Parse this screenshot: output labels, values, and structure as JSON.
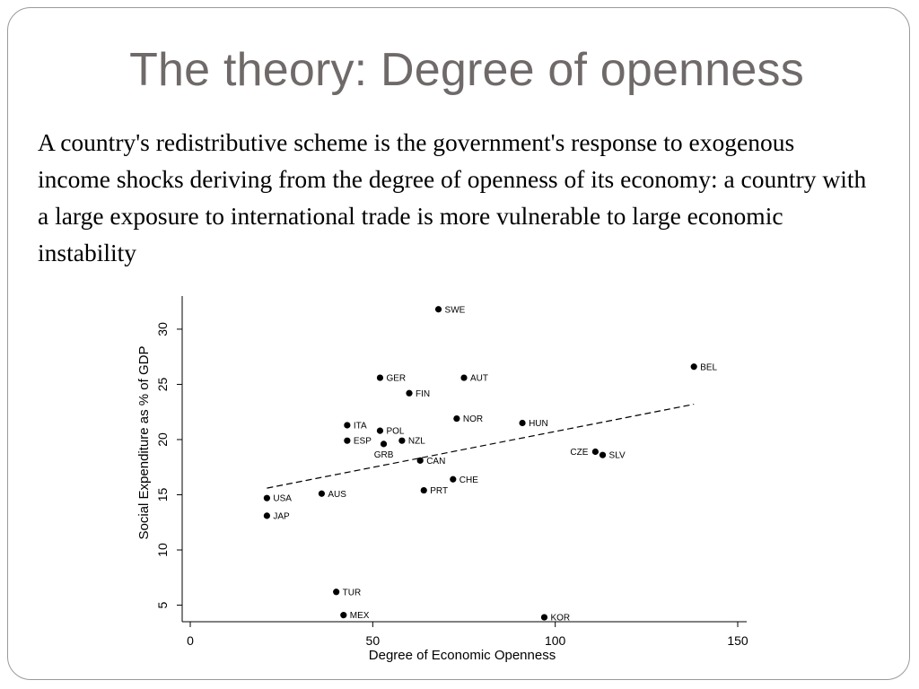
{
  "slide": {
    "title": "The theory: Degree of openness",
    "body": "A country's redistributive scheme is the government's response to exogenous income shocks deriving from the degree of openness of its economy: a country with a large exposure to international trade is more vulnerable to large economic instability"
  },
  "chart_data": {
    "type": "scatter",
    "title": "",
    "xlabel": "Degree of Economic Openness",
    "ylabel": "Social Expenditure as % of GDP",
    "xlim": [
      0,
      150
    ],
    "ylim": [
      3.5,
      33
    ],
    "xticks": [
      0,
      50,
      100,
      150
    ],
    "yticks": [
      5,
      10,
      15,
      20,
      25,
      30
    ],
    "grid": false,
    "legend": "none",
    "points": [
      {
        "label": "SWE",
        "x": 68,
        "y": 31.8
      },
      {
        "label": "BEL",
        "x": 138,
        "y": 26.6
      },
      {
        "label": "GER",
        "x": 52,
        "y": 25.6
      },
      {
        "label": "AUT",
        "x": 75,
        "y": 25.6
      },
      {
        "label": "FIN",
        "x": 60,
        "y": 24.2
      },
      {
        "label": "NOR",
        "x": 73,
        "y": 21.9
      },
      {
        "label": "HUN",
        "x": 91,
        "y": 21.5
      },
      {
        "label": "ITA",
        "x": 43,
        "y": 21.3
      },
      {
        "label": "POL",
        "x": 52,
        "y": 20.8
      },
      {
        "label": "ESP",
        "x": 43,
        "y": 19.9
      },
      {
        "label": "NZL",
        "x": 58,
        "y": 19.9
      },
      {
        "label": "GRB",
        "x": 53,
        "y": 19.6
      },
      {
        "label": "CZE",
        "x": 111,
        "y": 18.9
      },
      {
        "label": "SLV",
        "x": 113,
        "y": 18.6
      },
      {
        "label": "CAN",
        "x": 63,
        "y": 18.1
      },
      {
        "label": "CHE",
        "x": 72,
        "y": 16.4
      },
      {
        "label": "PRT",
        "x": 64,
        "y": 15.4
      },
      {
        "label": "AUS",
        "x": 36,
        "y": 15.1
      },
      {
        "label": "USA",
        "x": 21,
        "y": 14.7
      },
      {
        "label": "JAP",
        "x": 21,
        "y": 13.1
      },
      {
        "label": "TUR",
        "x": 40,
        "y": 6.2
      },
      {
        "label": "MEX",
        "x": 42,
        "y": 4.1
      },
      {
        "label": "KOR",
        "x": 97,
        "y": 3.9
      }
    ],
    "fit_line": {
      "x": [
        21,
        138
      ],
      "y": [
        15.6,
        23.2
      ],
      "style": "dashed"
    }
  }
}
